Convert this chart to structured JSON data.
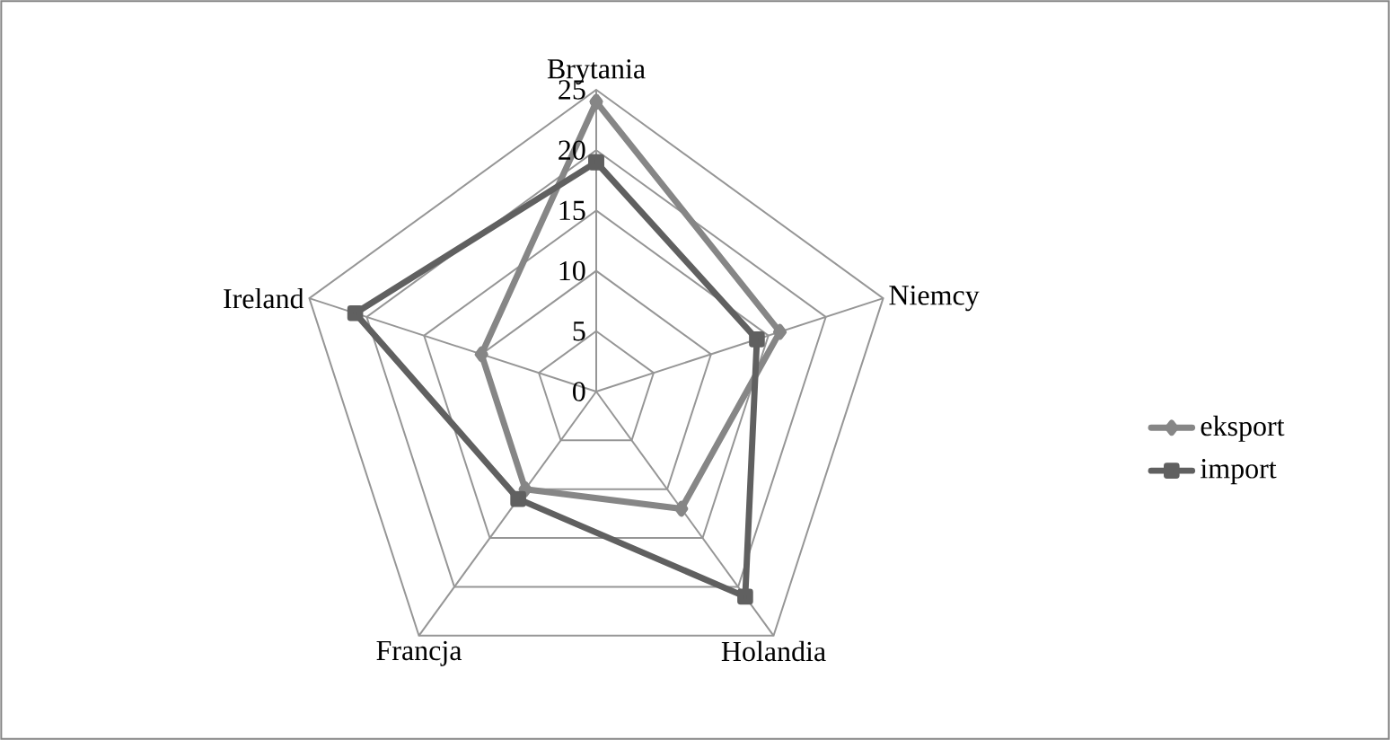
{
  "chart_data": {
    "type": "radar",
    "categories": [
      "Brytania",
      "Niemcy",
      "Holandia",
      "Francja",
      "Ireland"
    ],
    "series": [
      {
        "name": "eksport",
        "color": "#868686",
        "marker": "diamond",
        "values": [
          24,
          16,
          12,
          10,
          10
        ]
      },
      {
        "name": "import",
        "color": "#606060",
        "marker": "square",
        "values": [
          19,
          14,
          21,
          11,
          21
        ]
      }
    ],
    "ylim": [
      0,
      25
    ],
    "yticks": [
      0,
      5,
      10,
      15,
      20,
      25
    ],
    "grid": true,
    "legend": "right"
  }
}
